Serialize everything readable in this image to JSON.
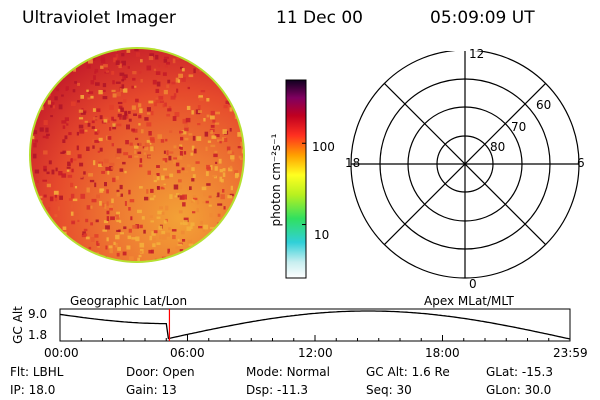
{
  "header": {
    "title": "Ultraviolet Imager",
    "date": "11 Dec 00",
    "time": "05:09:09 UT"
  },
  "image_panel": {
    "left_label": "Geographic Lat/Lon",
    "right_label": "Apex MLat/MLT"
  },
  "colorbar": {
    "unit": "photon cm⁻²s⁻¹",
    "ticks": [
      {
        "label": "100",
        "value": 100
      },
      {
        "label": "10",
        "value": 10
      }
    ],
    "colors": {
      "low": "#ffffff",
      "mid": "#ffff00",
      "high": "#000000"
    }
  },
  "polar_grid": {
    "mlt_labels": {
      "top": "12",
      "bottom": "0",
      "left": "18",
      "right": "6"
    },
    "lat_labels": [
      "60",
      "70",
      "80"
    ]
  },
  "timeline": {
    "ylabel": "GC Alt",
    "y_ticks": [
      "9.0",
      "1.8"
    ],
    "x_ticks": [
      "00:00",
      "06:00",
      "12:00",
      "18:00",
      "23:59"
    ],
    "current_time_marker": "05:09",
    "marker_color": "#ff0000"
  },
  "info": {
    "row1": [
      {
        "label": "Flt:",
        "value": "LBHL"
      },
      {
        "label": "Door:",
        "value": "Open"
      },
      {
        "label": "Mode:",
        "value": "Normal"
      },
      {
        "label": "GC Alt:",
        "value": "1.6 Re"
      },
      {
        "label": "GLat:",
        "value": "-15.3"
      }
    ],
    "row2": [
      {
        "label": "IP:",
        "value": "18.0"
      },
      {
        "label": "Gain:",
        "value": "13"
      },
      {
        "label": "Dsp:",
        "value": "-11.3"
      },
      {
        "label": "Seq:",
        "value": "30"
      },
      {
        "label": "GLon:",
        "value": "30.0"
      }
    ]
  }
}
